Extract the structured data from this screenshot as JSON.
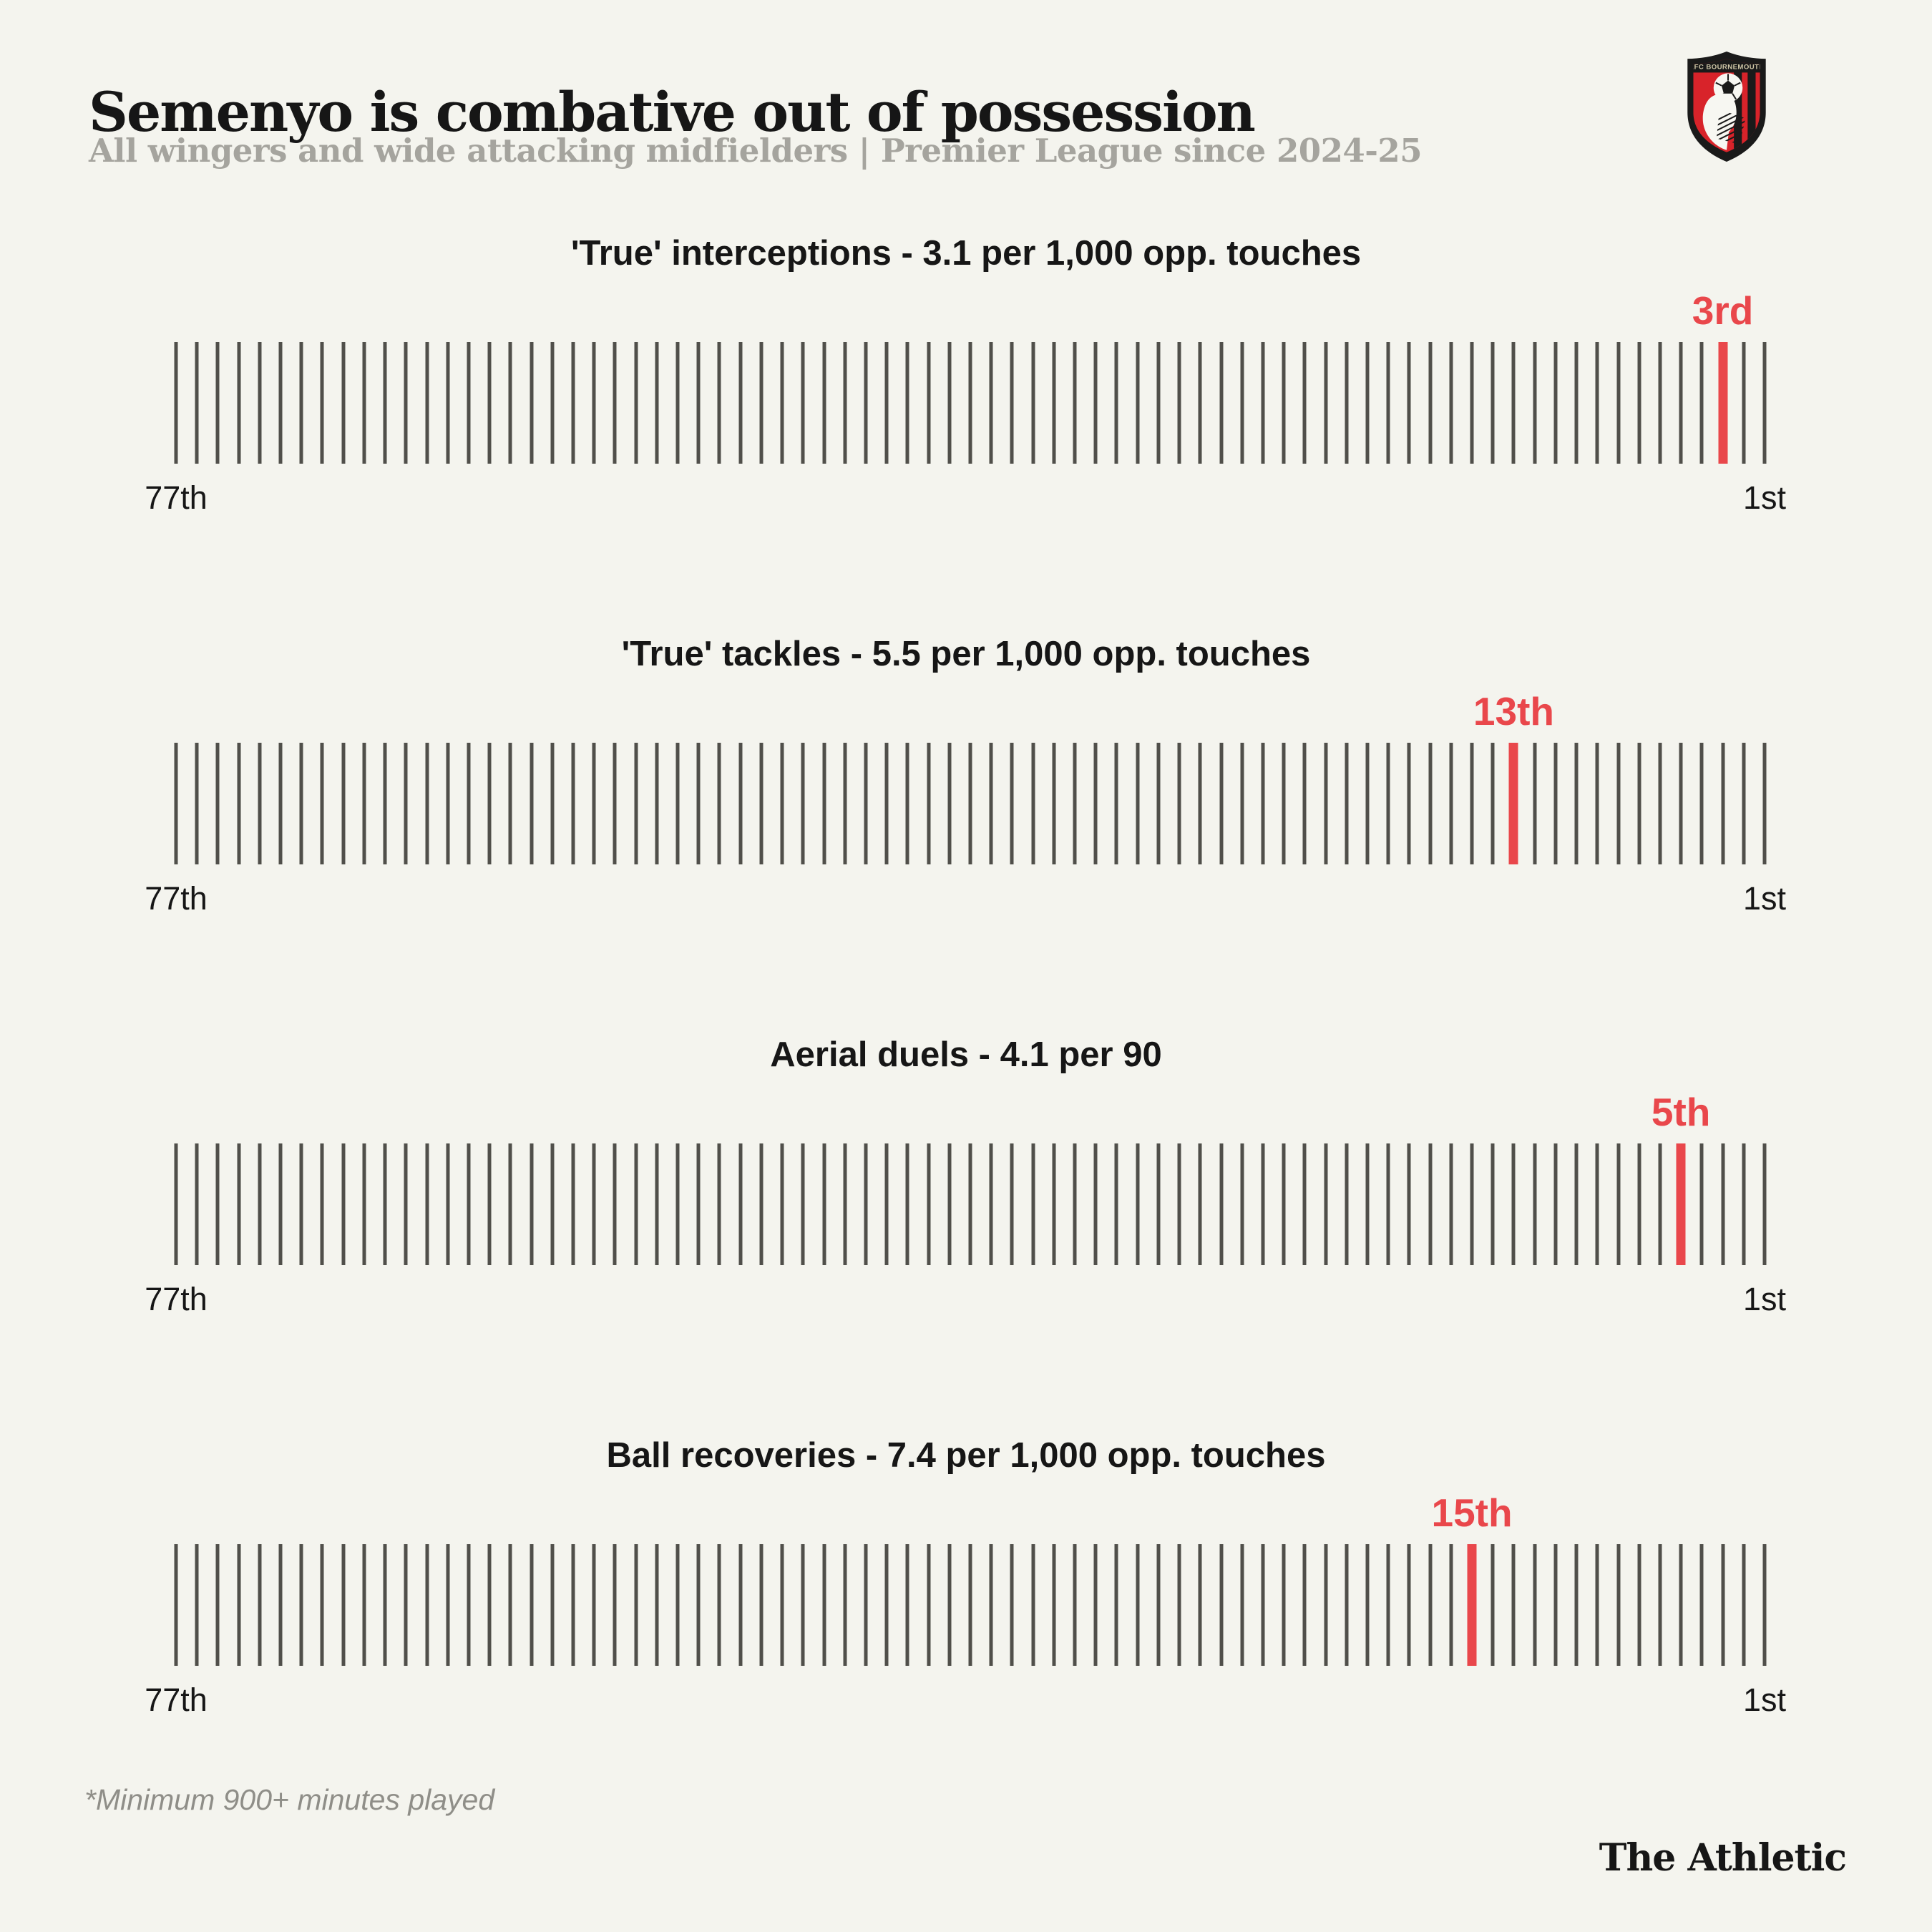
{
  "colors": {
    "background": "#f4f4ee",
    "ink": "#161616",
    "subtitle_gray": "#a5a49e",
    "tick_gray": "#504f4a",
    "accent_red": "#e9474b",
    "footnote_gray": "#8f8e88"
  },
  "header": {
    "title": "Semenyo is combative out of possession",
    "subtitle": "All wingers and wide attacking midfielders | Premier League since 2024-25",
    "badge_name": "AFC Bournemouth crest",
    "badge_banner": "AFC BOURNEMOUTH"
  },
  "footer": {
    "footnote": "*Minimum 900+ minutes played",
    "wordmark": "The Athletic"
  },
  "chart_data": [
    {
      "type": "strip-rank",
      "title": "'True' interceptions - 3.1 per 1,000 opp. touches",
      "metric": "'True' interceptions",
      "value": 3.1,
      "unit": "per 1,000 opp. touches",
      "rank": 3,
      "rank_label": "3rd",
      "total_ranks": 77,
      "axis_left_label": "77th",
      "axis_right_label": "1st"
    },
    {
      "type": "strip-rank",
      "title": "'True' tackles - 5.5 per 1,000 opp. touches",
      "metric": "'True' tackles",
      "value": 5.5,
      "unit": "per 1,000 opp. touches",
      "rank": 13,
      "rank_label": "13th",
      "total_ranks": 77,
      "axis_left_label": "77th",
      "axis_right_label": "1st"
    },
    {
      "type": "strip-rank",
      "title": "Aerial duels - 4.1 per 90",
      "metric": "Aerial duels",
      "value": 4.1,
      "unit": "per 90",
      "rank": 5,
      "rank_label": "5th",
      "total_ranks": 77,
      "axis_left_label": "77th",
      "axis_right_label": "1st"
    },
    {
      "type": "strip-rank",
      "title": "Ball recoveries - 7.4 per 1,000 opp. touches",
      "metric": "Ball recoveries",
      "value": 7.4,
      "unit": "per 1,000 opp. touches",
      "rank": 15,
      "rank_label": "15th",
      "total_ranks": 77,
      "axis_left_label": "77th",
      "axis_right_label": "1st"
    }
  ]
}
